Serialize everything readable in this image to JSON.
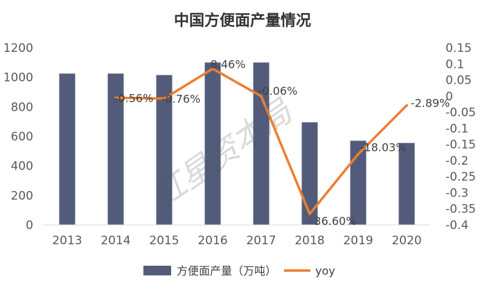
{
  "chart_data": {
    "type": "bar",
    "title": "中国方便面产量情况",
    "categories": [
      "2013",
      "2014",
      "2015",
      "2016",
      "2017",
      "2018",
      "2019",
      "2020"
    ],
    "series": [
      {
        "name": "方便面产量（万吨）",
        "type": "bar",
        "axis": "left",
        "color": "#525c7a",
        "values": [
          1025,
          1025,
          1015,
          1100,
          1100,
          695,
          570,
          555
        ]
      },
      {
        "name": "yoy",
        "type": "line",
        "axis": "right",
        "color": "#ed7d31",
        "x": [
          "2014",
          "2015",
          "2016",
          "2017",
          "2018",
          "2019",
          "2020"
        ],
        "values": [
          -0.0056,
          -0.0076,
          0.0846,
          -0.0006,
          -0.366,
          -0.1803,
          -0.0289
        ],
        "labels": [
          "-0.56%",
          "-0.76%",
          "8.46%",
          "-0.06%",
          "-36.60%",
          "-18.03%",
          "-2.89%"
        ]
      }
    ],
    "y_left": {
      "ylim": [
        0,
        1200
      ],
      "ticks": [
        "0",
        "200",
        "400",
        "600",
        "800",
        "1000",
        "1200"
      ]
    },
    "y_right": {
      "ylim": [
        -0.4,
        0.15
      ],
      "ticks": [
        "-0.4",
        "-0.35",
        "-0.3",
        "-0.25",
        "-0.2",
        "-0.15",
        "-0.1",
        "-0.05",
        "0",
        "0.05",
        "0.1",
        "0.15"
      ]
    },
    "grid": false,
    "legend_position": "bottom"
  },
  "watermark": {
    "text": "红星资本局"
  }
}
